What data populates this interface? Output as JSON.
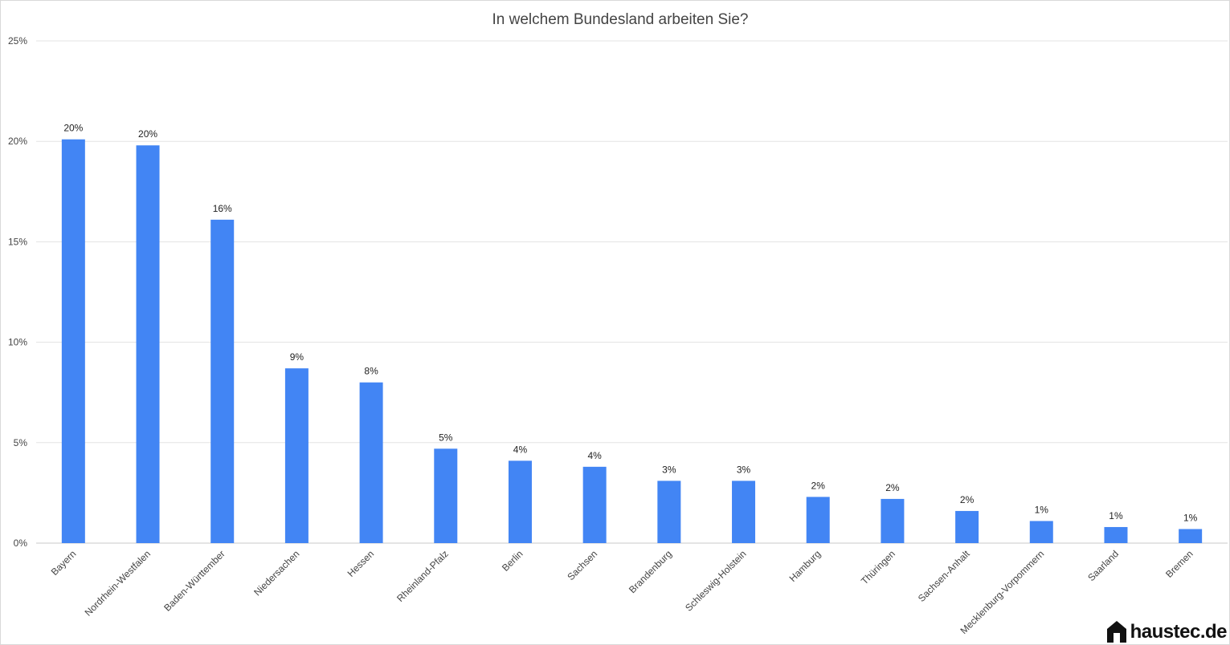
{
  "chart_data": {
    "type": "bar",
    "title": "In welchem Bundesland arbeiten Sie?",
    "xlabel": "",
    "ylabel": "",
    "ylim": [
      0,
      25
    ],
    "yticks": [
      "0%",
      "5%",
      "10%",
      "15%",
      "20%",
      "25%"
    ],
    "ytick_values": [
      0,
      5,
      10,
      15,
      20,
      25
    ],
    "grid": true,
    "legend": "none",
    "bar_color": "#4285f4",
    "categories": [
      "Bayern",
      "Nordrhein-Westfalen",
      "Baden-Württember",
      "Niedersachen",
      "Hessen",
      "Rheinland-Pfalz",
      "Berlin",
      "Sachsen",
      "Brandenburg",
      "Schleswig-Holstein",
      "Hamburg",
      "Thüringen",
      "Sachsen-Anhalt",
      "Mecklenburg-Vorpommern",
      "Saarland",
      "Bremen"
    ],
    "values": [
      20.1,
      19.8,
      16.1,
      8.7,
      8.0,
      4.7,
      4.1,
      3.8,
      3.1,
      3.1,
      2.3,
      2.2,
      1.6,
      1.1,
      0.8,
      0.7
    ],
    "data_labels": [
      "20%",
      "20%",
      "16%",
      "9%",
      "8%",
      "5%",
      "4%",
      "4%",
      "3%",
      "3%",
      "2%",
      "2%",
      "2%",
      "1%",
      "1%",
      "1%"
    ]
  },
  "logo": {
    "text": "haustec.de",
    "icon": "house-icon"
  }
}
